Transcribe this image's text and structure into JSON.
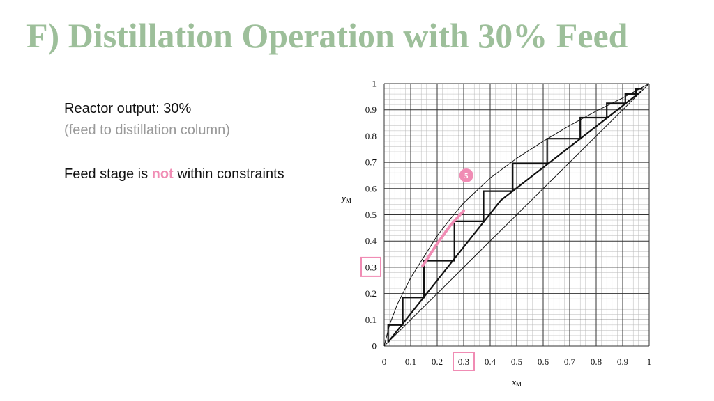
{
  "slide": {
    "title": "F) Distillation Operation with 30% Feed",
    "title_color": "#9dbf9a",
    "reactor_output": "Reactor output: 30%",
    "feed_note": "(feed to distillation column)",
    "feed_stage_prefix": "Feed stage is ",
    "feed_stage_emphasis": "not",
    "feed_stage_suffix": " within constraints",
    "note_color": "#9a9a9a",
    "emphasis_color": "#f08cb4"
  },
  "chart_data": {
    "type": "line",
    "xlabel": "x",
    "xlabel_sub": "M",
    "ylabel": "y",
    "ylabel_sub": "M",
    "xlim": [
      0,
      1
    ],
    "ylim": [
      0,
      1
    ],
    "x_ticks": [
      "0",
      "0.1",
      "0.2",
      "0.3",
      "0.4",
      "0.5",
      "0.6",
      "0.7",
      "0.8",
      "0.9",
      "1"
    ],
    "y_ticks": [
      "0",
      "0.1",
      "0.2",
      "0.3",
      "0.4",
      "0.5",
      "0.6",
      "0.7",
      "0.8",
      "0.9",
      "1"
    ],
    "grid": true,
    "equilibrium_curve": [
      [
        0,
        0
      ],
      [
        0.02,
        0.08
      ],
      [
        0.05,
        0.16
      ],
      [
        0.1,
        0.26
      ],
      [
        0.15,
        0.34
      ],
      [
        0.2,
        0.42
      ],
      [
        0.25,
        0.485
      ],
      [
        0.3,
        0.545
      ],
      [
        0.4,
        0.64
      ],
      [
        0.5,
        0.715
      ],
      [
        0.6,
        0.78
      ],
      [
        0.7,
        0.84
      ],
      [
        0.8,
        0.895
      ],
      [
        0.9,
        0.945
      ],
      [
        1,
        1
      ]
    ],
    "diagonal": [
      [
        0,
        0
      ],
      [
        1,
        1
      ]
    ],
    "operating_line": [
      [
        0.015,
        0.015
      ],
      [
        0.44,
        0.555
      ],
      [
        0.97,
        0.97
      ]
    ],
    "stages": [
      [
        0.015,
        0.015
      ],
      [
        0.015,
        0.08
      ],
      [
        0.07,
        0.08
      ],
      [
        0.07,
        0.185
      ],
      [
        0.15,
        0.185
      ],
      [
        0.15,
        0.325
      ],
      [
        0.265,
        0.325
      ],
      [
        0.265,
        0.475
      ],
      [
        0.375,
        0.475
      ],
      [
        0.375,
        0.59
      ],
      [
        0.485,
        0.59
      ],
      [
        0.485,
        0.695
      ],
      [
        0.615,
        0.695
      ],
      [
        0.615,
        0.79
      ],
      [
        0.74,
        0.79
      ],
      [
        0.74,
        0.87
      ],
      [
        0.84,
        0.87
      ],
      [
        0.84,
        0.925
      ],
      [
        0.91,
        0.925
      ],
      [
        0.91,
        0.96
      ],
      [
        0.95,
        0.96
      ],
      [
        0.95,
        0.98
      ],
      [
        0.975,
        0.98
      ]
    ],
    "highlight_curve": [
      [
        0.145,
        0.305
      ],
      [
        0.2,
        0.39
      ],
      [
        0.25,
        0.46
      ],
      [
        0.3,
        0.515
      ]
    ],
    "highlight_color": "#f08cb4",
    "stage_marker": {
      "label": "5",
      "x": 0.31,
      "y": 0.65
    },
    "highlighted_ticks": {
      "x": "0.3",
      "y": "0.3"
    }
  }
}
